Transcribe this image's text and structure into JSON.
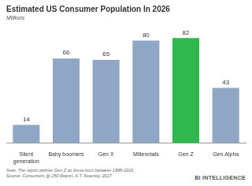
{
  "chart_data": {
    "type": "bar",
    "title": "Estimated US Consumer Population In 2026",
    "subtitle": "Millions",
    "categories": [
      "Silent generation",
      "Baby boomers",
      "Gen X",
      "Millennials",
      "Gen Z",
      "Gen Alpha"
    ],
    "values": [
      14,
      66,
      65,
      80,
      82,
      43
    ],
    "colors": [
      "#8fa6c4",
      "#8fa6c4",
      "#8fa6c4",
      "#8fa6c4",
      "#2eb84e",
      "#8fa6c4"
    ],
    "ylim": [
      0,
      90
    ],
    "grid": false,
    "data_labels": true,
    "tick_labels": "x",
    "annotations": [
      "Note: The report defines Gen Z as those born between 1998-2016.",
      "Source: Consumers @ 250 Report, A.T. Kearney, 2017",
      "BI INTELLIGENCE"
    ]
  }
}
